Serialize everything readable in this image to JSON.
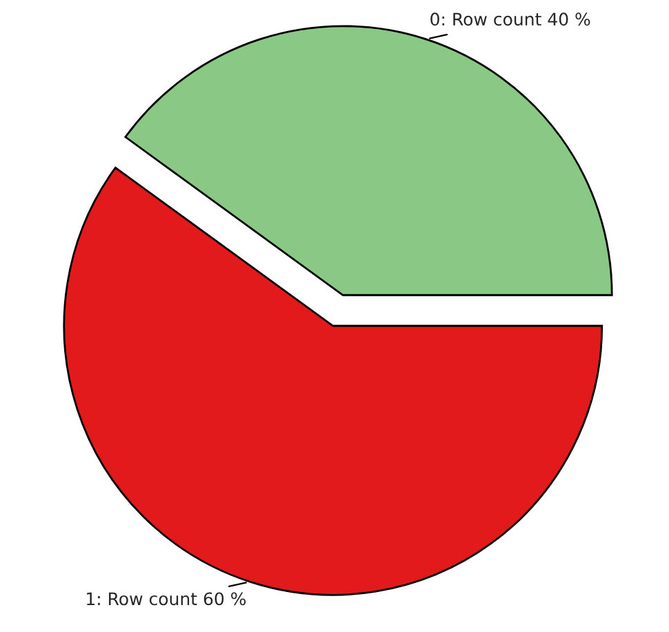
{
  "chart_data": {
    "type": "pie",
    "categories": [
      "0: Row count 40 %",
      "1: Row count 60 %"
    ],
    "values": [
      40,
      60
    ],
    "colors": [
      "#8ac886",
      "#e31a1c"
    ]
  }
}
